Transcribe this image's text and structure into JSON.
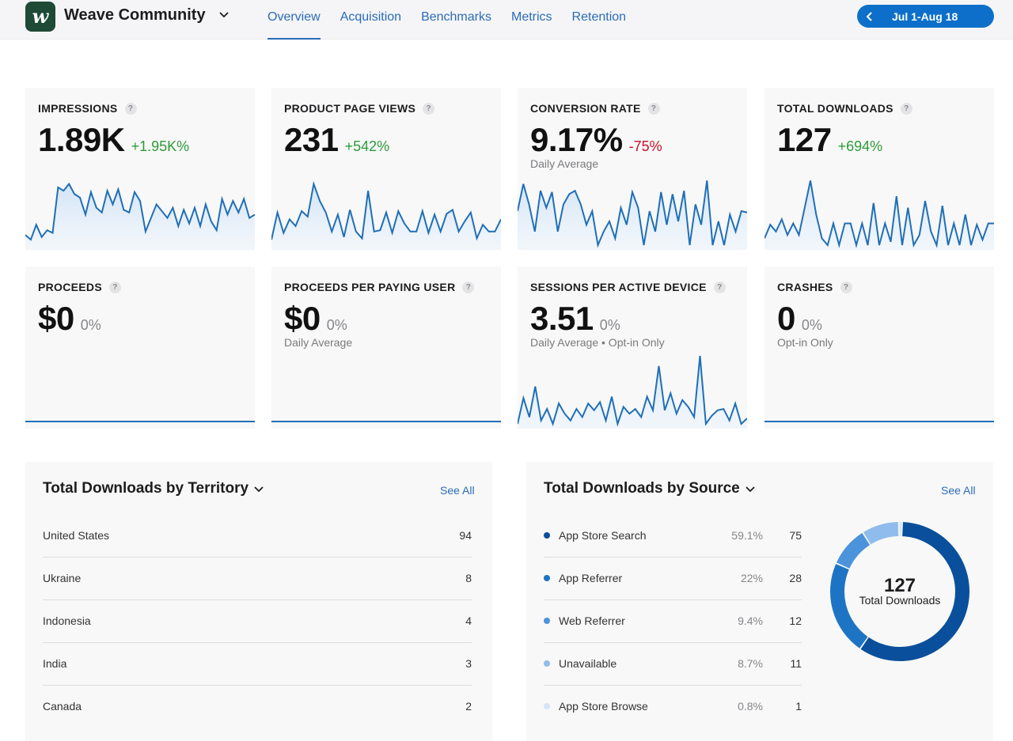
{
  "header": {
    "app_name": "Weave Community",
    "tabs": [
      {
        "label": "Overview",
        "active": true
      },
      {
        "label": "Acquisition",
        "active": false
      },
      {
        "label": "Benchmarks",
        "active": false
      },
      {
        "label": "Metrics",
        "active": false
      },
      {
        "label": "Retention",
        "active": false
      }
    ],
    "date_range": "Jul 1-Aug 18",
    "logo_letter": "w"
  },
  "metrics": [
    {
      "title": "IMPRESSIONS",
      "value": "1.89K",
      "change": "+1.95K%",
      "trend": "pos",
      "sub": "",
      "series": [
        0.15,
        0.08,
        0.3,
        0.12,
        0.22,
        0.18,
        0.85,
        0.8,
        0.9,
        0.75,
        0.7,
        0.45,
        0.78,
        0.55,
        0.48,
        0.8,
        0.6,
        0.82,
        0.52,
        0.48,
        0.78,
        0.65,
        0.2,
        0.4,
        0.6,
        0.5,
        0.4,
        0.55,
        0.28,
        0.52,
        0.32,
        0.55,
        0.28,
        0.6,
        0.35,
        0.22,
        0.68,
        0.45,
        0.65,
        0.48,
        0.68,
        0.4,
        0.45
      ]
    },
    {
      "title": "PRODUCT PAGE VIEWS",
      "value": "231",
      "change": "+542%",
      "trend": "pos",
      "sub": "",
      "series": [
        0.08,
        0.48,
        0.18,
        0.38,
        0.28,
        0.5,
        0.42,
        0.9,
        0.65,
        0.48,
        0.2,
        0.45,
        0.12,
        0.52,
        0.2,
        0.1,
        0.8,
        0.2,
        0.22,
        0.48,
        0.18,
        0.5,
        0.32,
        0.2,
        0.2,
        0.5,
        0.18,
        0.45,
        0.2,
        0.46,
        0.52,
        0.2,
        0.35,
        0.48,
        0.1,
        0.3,
        0.2,
        0.2,
        0.38
      ]
    },
    {
      "title": "CONVERSION RATE",
      "value": "9.17%",
      "change": "-75%",
      "trend": "neg",
      "sub": "Daily Average",
      "series": [
        0.5,
        0.9,
        0.6,
        0.2,
        0.8,
        0.55,
        0.78,
        0.2,
        0.6,
        0.75,
        0.8,
        0.6,
        0.3,
        0.5,
        0.0,
        0.2,
        0.35,
        0.1,
        0.55,
        0.3,
        0.78,
        0.55,
        0.0,
        0.5,
        0.2,
        0.78,
        0.3,
        0.75,
        0.35,
        0.8,
        0.0,
        0.6,
        0.3,
        0.95,
        0.0,
        0.35,
        0.0,
        0.45,
        0.2,
        0.5,
        0.48
      ]
    },
    {
      "title": "TOTAL DOWNLOADS",
      "value": "127",
      "change": "+694%",
      "trend": "pos",
      "sub": "",
      "series": [
        0.1,
        0.3,
        0.2,
        0.38,
        0.15,
        0.32,
        0.15,
        0.55,
        0.95,
        0.45,
        0.1,
        0.0,
        0.32,
        0.0,
        0.32,
        0.32,
        0.0,
        0.32,
        0.0,
        0.62,
        0.0,
        0.32,
        0.05,
        0.72,
        0.0,
        0.55,
        0.0,
        0.15,
        0.65,
        0.2,
        0.0,
        0.58,
        0.0,
        0.32,
        0.0,
        0.45,
        0.0,
        0.3,
        0.08,
        0.32,
        0.32
      ]
    },
    {
      "title": "PROCEEDS",
      "value": "$0",
      "change": "0%",
      "trend": "neu",
      "sub": "",
      "series": []
    },
    {
      "title": "PROCEEDS PER PAYING USER",
      "value": "$0",
      "change": "0%",
      "trend": "neu",
      "sub": "Daily Average",
      "series": []
    },
    {
      "title": "SESSIONS PER ACTIVE DEVICE",
      "value": "3.51",
      "change": "0%",
      "trend": "neu",
      "sub": "Daily Average • Opt-in Only",
      "series": [
        0.0,
        0.38,
        0.1,
        0.55,
        0.05,
        0.22,
        0.0,
        0.3,
        0.15,
        0.05,
        0.22,
        0.1,
        0.3,
        0.2,
        0.32,
        0.05,
        0.4,
        0.0,
        0.25,
        0.15,
        0.22,
        0.1,
        0.4,
        0.2,
        0.85,
        0.2,
        0.45,
        0.15,
        0.35,
        0.25,
        0.1,
        1.0,
        0.0,
        0.12,
        0.2,
        0.22,
        0.05,
        0.3,
        0.0,
        0.08
      ]
    },
    {
      "title": "CRASHES",
      "value": "0",
      "change": "0%",
      "trend": "neu",
      "sub": "Opt-in Only",
      "series": []
    }
  ],
  "territory": {
    "title": "Total Downloads by Territory",
    "see_all": "See All",
    "rows": [
      {
        "name": "United States",
        "count": "94"
      },
      {
        "name": "Ukraine",
        "count": "8"
      },
      {
        "name": "Indonesia",
        "count": "4"
      },
      {
        "name": "India",
        "count": "3"
      },
      {
        "name": "Canada",
        "count": "2"
      }
    ]
  },
  "source": {
    "title": "Total Downloads by Source",
    "see_all": "See All",
    "total": "127",
    "total_label": "Total Downloads",
    "rows": [
      {
        "name": "App Store Search",
        "percent": "59.1%",
        "count": "75",
        "share": 59.1,
        "color": "#0a4f9c"
      },
      {
        "name": "App Referrer",
        "percent": "22%",
        "count": "28",
        "share": 22,
        "color": "#1d74c4"
      },
      {
        "name": "Web Referrer",
        "percent": "9.4%",
        "count": "12",
        "share": 9.4,
        "color": "#4b93db"
      },
      {
        "name": "Unavailable",
        "percent": "8.7%",
        "count": "11",
        "share": 8.7,
        "color": "#8fbcec"
      },
      {
        "name": "App Store Browse",
        "percent": "0.8%",
        "count": "1",
        "share": 0.8,
        "color": "#d4e6f8"
      }
    ]
  }
}
